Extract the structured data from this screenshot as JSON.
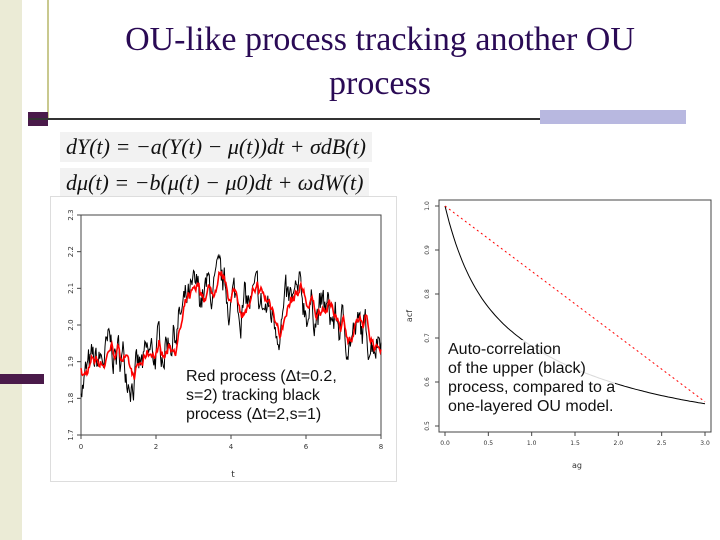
{
  "slide": {
    "title_line1": "OU-like process tracking another OU",
    "title_line2": "process",
    "equation1": "dY(t) = −a(Y(t) − μ(t))dt + σdB(t)",
    "equation2": "dμ(t) = −b(μ(t) − μ0)dt + ωdW(t)"
  },
  "chart_data": [
    {
      "type": "line",
      "title": "",
      "xlabel": "t",
      "ylabel": "",
      "xlim": [
        0,
        8
      ],
      "ylim": [
        1.7,
        2.3
      ],
      "x_ticks": [
        "0",
        "2",
        "4",
        "6",
        "8"
      ],
      "y_ticks": [
        "1.7",
        "1.8",
        "1.9",
        "2.0",
        "2.1",
        "2.2",
        "2.3"
      ],
      "series": [
        {
          "name": "black process",
          "color": "#000000"
        },
        {
          "name": "red process",
          "color": "#ff0000"
        }
      ],
      "caption_lines": [
        "Red process (Δt=0.2,",
        "s=2) tracking black",
        "process (Δt=2,s=1)"
      ]
    },
    {
      "type": "line",
      "title": "",
      "xlabel": "ag",
      "ylabel": "acf",
      "xlim": [
        0,
        3
      ],
      "ylim": [
        0.5,
        1.0
      ],
      "x_ticks": [
        "0.0",
        "0.5",
        "1.0",
        "1.5",
        "2.0",
        "2.5",
        "3.0"
      ],
      "y_ticks": [
        "1.0",
        "0.9",
        "0.8",
        "0.7",
        "0.6",
        "0.5"
      ],
      "series": [
        {
          "name": "upper (black) process",
          "color": "#000000"
        },
        {
          "name": "one-layered OU model",
          "color": "#ff0000",
          "x": [
            0,
            3
          ],
          "y": [
            1.0,
            0.555
          ]
        }
      ],
      "caption_lines": [
        "Auto-correlation",
        "of the upper (black)",
        "process, compared to a",
        "one-layered OU model."
      ]
    }
  ]
}
